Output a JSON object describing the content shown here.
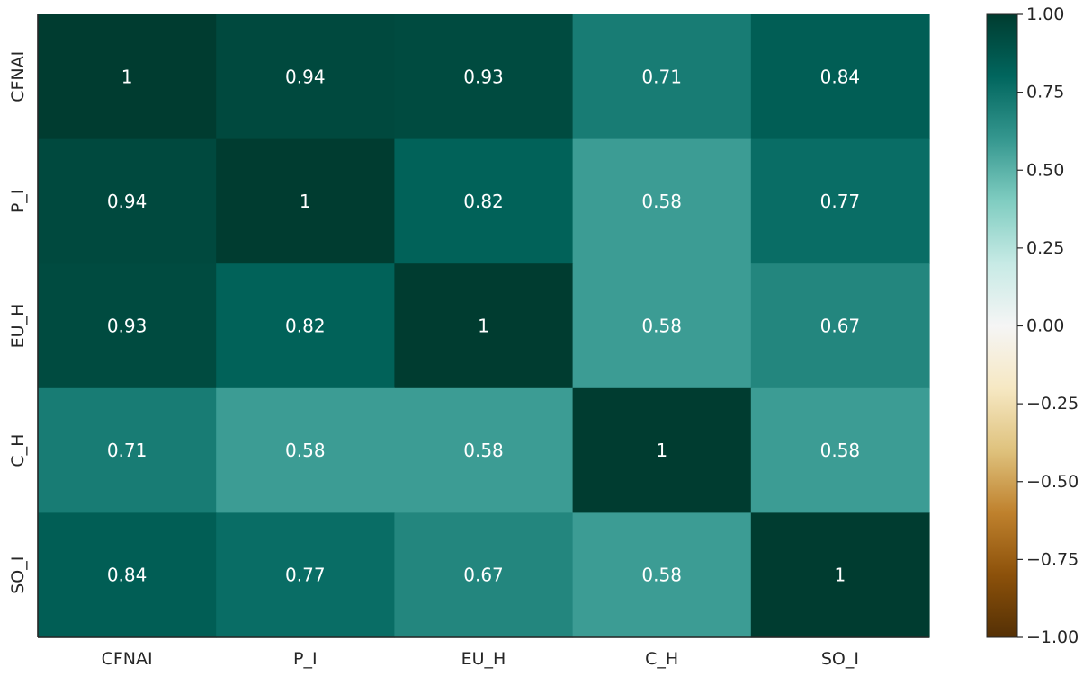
{
  "chart_data": {
    "type": "heatmap",
    "title": "",
    "xlabel": "",
    "ylabel": "",
    "x_categories": [
      "CFNAI",
      "P_I",
      "EU_H",
      "C_H",
      "SO_I"
    ],
    "y_categories": [
      "CFNAI",
      "P_I",
      "EU_H",
      "C_H",
      "SO_I"
    ],
    "values": [
      [
        1,
        0.94,
        0.93,
        0.71,
        0.84
      ],
      [
        0.94,
        1,
        0.82,
        0.58,
        0.77
      ],
      [
        0.93,
        0.82,
        1,
        0.58,
        0.67
      ],
      [
        0.71,
        0.58,
        0.58,
        1,
        0.58
      ],
      [
        0.84,
        0.77,
        0.67,
        0.58,
        1
      ]
    ],
    "annotations": [
      [
        "1",
        "0.94",
        "0.93",
        "0.71",
        "0.84"
      ],
      [
        "0.94",
        "1",
        "0.82",
        "0.58",
        "0.77"
      ],
      [
        "0.93",
        "0.82",
        "1",
        "0.58",
        "0.67"
      ],
      [
        "0.71",
        "0.58",
        "0.58",
        "1",
        "0.58"
      ],
      [
        "0.84",
        "0.77",
        "0.67",
        "0.58",
        "1"
      ]
    ],
    "colormap": "BrBG",
    "vmin": -1,
    "vmax": 1,
    "colorbar": {
      "ticks": [
        1.0,
        0.75,
        0.5,
        0.25,
        0.0,
        -0.25,
        -0.5,
        -0.75,
        -1.0
      ],
      "tick_labels": [
        "1.00",
        "0.75",
        "0.50",
        "0.25",
        "0.00",
        "−0.25",
        "−0.50",
        "−0.75",
        "−1.00"
      ]
    },
    "grid": false,
    "colors": {
      "stops": [
        "#543005",
        "#8c510a",
        "#bf812d",
        "#dfc27d",
        "#f6e8c3",
        "#f5f5f5",
        "#c7eae5",
        "#80cdc1",
        "#35978f",
        "#01665e",
        "#003c30"
      ],
      "text": "#ffffff",
      "axes": "#262626"
    }
  }
}
